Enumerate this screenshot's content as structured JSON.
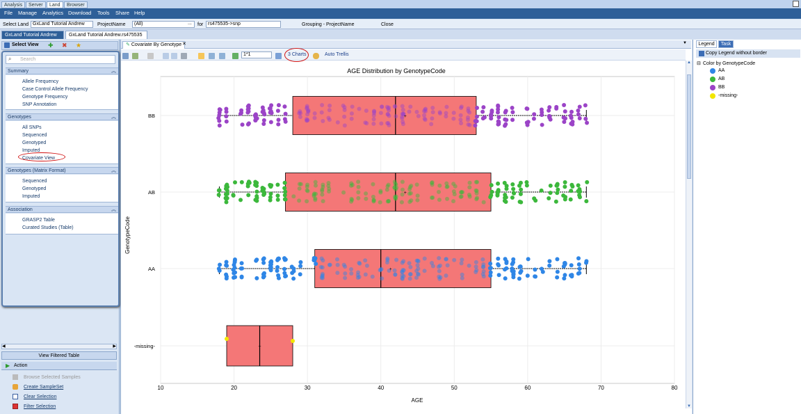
{
  "top_tabs": [
    "Analysis",
    "Server",
    "Land",
    "Browser"
  ],
  "menu": [
    "File",
    "Manage",
    "Analytics",
    "Download",
    "Tools",
    "Share",
    "Help"
  ],
  "land_row": {
    "select_land_label": "Select Land",
    "select_land_value": "GxLand Tutorial Andrew",
    "ellipsis": "...",
    "project_label": "ProjectName",
    "project_value": "(All)",
    "for_label": "for",
    "for_value": "rs475535->snp",
    "grouping": "Grouping - ProjectName",
    "close": "Close"
  },
  "doc_tabs": [
    "GxLand Tutorial Andrew",
    "GxLand Tutorial Andrew.rs475535"
  ],
  "left": {
    "select_view": "Select View",
    "search_placeholder": "Search",
    "sections": [
      {
        "title": "Summary",
        "items": [
          "Allele Frequency",
          "Case Control Allele Frequency",
          "Genotype Frequency",
          "SNP Annotation"
        ]
      },
      {
        "title": "Genotypes",
        "items": [
          "All SNPs",
          "Sequenced",
          "Genotyped",
          "Imputed",
          "Covariate View"
        ]
      },
      {
        "title": "Genotypes (Matrix Format)",
        "items": [
          "Sequenced",
          "Genotyped",
          "Imputed"
        ]
      },
      {
        "title": "Association",
        "items": [
          "GRASP2 Table",
          "Curated Studies (Table)"
        ]
      }
    ],
    "view_filtered": "View Filtered Table",
    "action_label": "Action",
    "actions": [
      "Browse Selected Samples",
      "Create SampleSet",
      "Clear Selection",
      "Filter Selection"
    ]
  },
  "main": {
    "tab": "Covariate By Genotype",
    "zoom": "1*1",
    "charts_btn": "3 Charts",
    "trellis": "Auto Trellis"
  },
  "right": {
    "tabs": [
      "Legend",
      "Task"
    ],
    "copy": "Copy Legend  without border",
    "color_by": "Color by GenotypeCode",
    "entries": [
      {
        "label": "AA",
        "color": "#2f86e6"
      },
      {
        "label": "AB",
        "color": "#3cb83c"
      },
      {
        "label": "BB",
        "color": "#9b44c7"
      },
      {
        "label": "-missing-",
        "color": "#f2e600"
      }
    ]
  },
  "chart_data": {
    "type": "box",
    "title": "AGE Distribution by GenotypeCode",
    "xlabel": "AGE",
    "ylabel": "GenotypeCode",
    "xlim": [
      10,
      80
    ],
    "xticks": [
      10,
      20,
      30,
      40,
      50,
      60,
      70,
      80
    ],
    "categories": [
      "BB",
      "AB",
      "AA",
      "-missing-"
    ],
    "boxes": [
      {
        "name": "BB",
        "whisker_low": 18,
        "q1": 28,
        "median": 42,
        "q3": 53,
        "whisker_high": 68
      },
      {
        "name": "AB",
        "whisker_low": 18,
        "q1": 27,
        "median": 42,
        "q3": 55,
        "whisker_high": 68
      },
      {
        "name": "AA",
        "whisker_low": 18,
        "q1": 31,
        "median": 40,
        "q3": 55,
        "whisker_high": 68
      },
      {
        "name": "-missing-",
        "whisker_low": 19,
        "q1": 19,
        "median": 23.5,
        "q3": 28,
        "whisker_high": 28
      }
    ],
    "box_color": "#f47777",
    "grid": true
  }
}
